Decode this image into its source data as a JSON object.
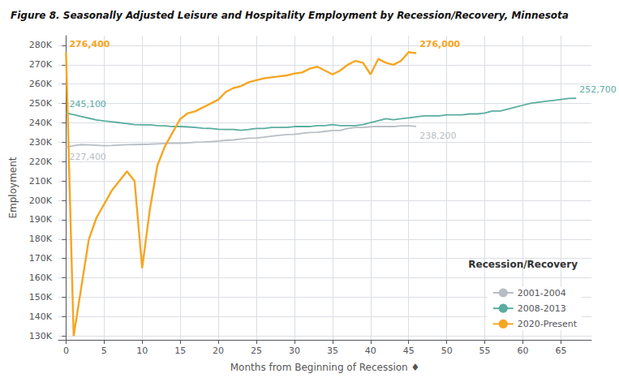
{
  "chart_data": {
    "type": "line",
    "title": "Figure 8. Seasonally Adjusted Leisure and Hospitality Employment by Recession/Recovery, Minnesota",
    "x_label": "Months from Beginning of Recession ♦",
    "y_label": "Employment",
    "xlim": [
      -1,
      69
    ],
    "ylim": [
      128000,
      285000
    ],
    "xticks": [
      0,
      5,
      10,
      15,
      20,
      25,
      30,
      35,
      40,
      45,
      50,
      55,
      60,
      65
    ],
    "yticks": [
      {
        "value": 130000,
        "label": "130K"
      },
      {
        "value": 140000,
        "label": "140K"
      },
      {
        "value": 150000,
        "label": "150K"
      },
      {
        "value": 160000,
        "label": "160K"
      },
      {
        "value": 170000,
        "label": "170K"
      },
      {
        "value": 180000,
        "label": "180K"
      },
      {
        "value": 190000,
        "label": "190K"
      },
      {
        "value": 200000,
        "label": "200K"
      },
      {
        "value": 210000,
        "label": "210K"
      },
      {
        "value": 220000,
        "label": "220K"
      },
      {
        "value": 230000,
        "label": "230K"
      },
      {
        "value": 240000,
        "label": "240K"
      },
      {
        "value": 250000,
        "label": "250K"
      },
      {
        "value": 260000,
        "label": "260K"
      },
      {
        "value": 270000,
        "label": "270K"
      },
      {
        "value": 280000,
        "label": "280K"
      }
    ],
    "grid": true,
    "legend": "lower right",
    "legend_title": "Recession/Recovery",
    "series": [
      {
        "name": "2001-2004",
        "color": "#b8bec4",
        "x": [
          0,
          1,
          2,
          3,
          4,
          5,
          6,
          7,
          8,
          9,
          10,
          11,
          12,
          13,
          14,
          15,
          16,
          17,
          18,
          19,
          20,
          21,
          22,
          23,
          24,
          25,
          26,
          27,
          28,
          29,
          30,
          31,
          32,
          33,
          34,
          35,
          36,
          37,
          38,
          39,
          40,
          41,
          42,
          43,
          44,
          45,
          46
        ],
        "values": [
          227400,
          228200,
          228800,
          228600,
          228400,
          228200,
          228300,
          228500,
          228700,
          228800,
          228900,
          229000,
          229200,
          229400,
          229500,
          229500,
          229700,
          230000,
          230100,
          230300,
          230600,
          231000,
          231200,
          231700,
          232100,
          232200,
          232600,
          233100,
          233600,
          234000,
          234100,
          234600,
          235000,
          235100,
          235600,
          236100,
          236100,
          237100,
          237600,
          237600,
          238000,
          238200,
          238100,
          238100,
          238500,
          238500,
          238200
        ]
      },
      {
        "name": "2008-2013",
        "color": "#5aada0",
        "x": [
          0,
          1,
          2,
          3,
          4,
          5,
          6,
          7,
          8,
          9,
          10,
          11,
          12,
          13,
          14,
          15,
          16,
          17,
          18,
          19,
          20,
          21,
          22,
          23,
          24,
          25,
          26,
          27,
          28,
          29,
          30,
          31,
          32,
          33,
          34,
          35,
          36,
          37,
          38,
          39,
          40,
          41,
          42,
          43,
          44,
          45,
          46,
          47,
          48,
          49,
          50,
          51,
          52,
          53,
          54,
          55,
          56,
          57,
          58,
          59,
          60,
          61,
          62,
          63,
          64,
          65,
          66,
          67
        ],
        "values": [
          245100,
          244200,
          243300,
          242400,
          241500,
          241000,
          240600,
          240100,
          239600,
          239100,
          239000,
          239000,
          238600,
          238500,
          238100,
          238100,
          237900,
          237600,
          237200,
          237100,
          236700,
          236600,
          236600,
          236200,
          236600,
          237100,
          237100,
          237600,
          237600,
          237600,
          238100,
          238100,
          238100,
          238600,
          238600,
          239100,
          238600,
          238600,
          238600,
          239100,
          240100,
          241100,
          242100,
          241600,
          242100,
          242600,
          243100,
          243600,
          243600,
          243600,
          244100,
          244100,
          244100,
          244600,
          244600,
          245100,
          246100,
          246100,
          247100,
          248100,
          249100,
          250100,
          250600,
          251100,
          251600,
          252100,
          252600,
          252700
        ]
      },
      {
        "name": "2020-Present",
        "color": "#f5a623",
        "x": [
          0,
          1,
          2,
          3,
          4,
          5,
          6,
          7,
          8,
          9,
          10,
          11,
          12,
          13,
          14,
          15,
          16,
          17,
          18,
          19,
          20,
          21,
          22,
          23,
          24,
          25,
          26,
          27,
          28,
          29,
          30,
          31,
          32,
          33,
          34,
          35,
          36,
          37,
          38,
          39,
          40,
          41,
          42,
          43,
          44,
          45,
          46
        ],
        "values": [
          276400,
          130000,
          155000,
          180000,
          191000,
          198000,
          205000,
          210000,
          215000,
          210000,
          165000,
          195000,
          218000,
          228000,
          235000,
          242000,
          245000,
          246000,
          248000,
          250000,
          252000,
          256000,
          258000,
          259000,
          261000,
          262000,
          263000,
          263500,
          264000,
          264500,
          265500,
          266000,
          268000,
          269000,
          267000,
          265000,
          267000,
          270000,
          272000,
          271000,
          265000,
          273000,
          271000,
          270000,
          272000,
          276500,
          276000
        ]
      }
    ],
    "annotations": [
      {
        "text": "276,400",
        "x": 0,
        "y": 276400,
        "color": "#f5a623"
      },
      {
        "text": "276,000",
        "x": 46,
        "y": 276000,
        "color": "#f5a623"
      },
      {
        "text": "227,400",
        "x": 0,
        "y": 227400,
        "color": "#b8bec4"
      },
      {
        "text": "238,200",
        "x": 46,
        "y": 238200,
        "color": "#b8bec4"
      },
      {
        "text": "245,100",
        "x": 0,
        "y": 245100,
        "color": "#5aada0"
      },
      {
        "text": "252,700",
        "x": 67,
        "y": 252700,
        "color": "#5aada0"
      }
    ]
  }
}
